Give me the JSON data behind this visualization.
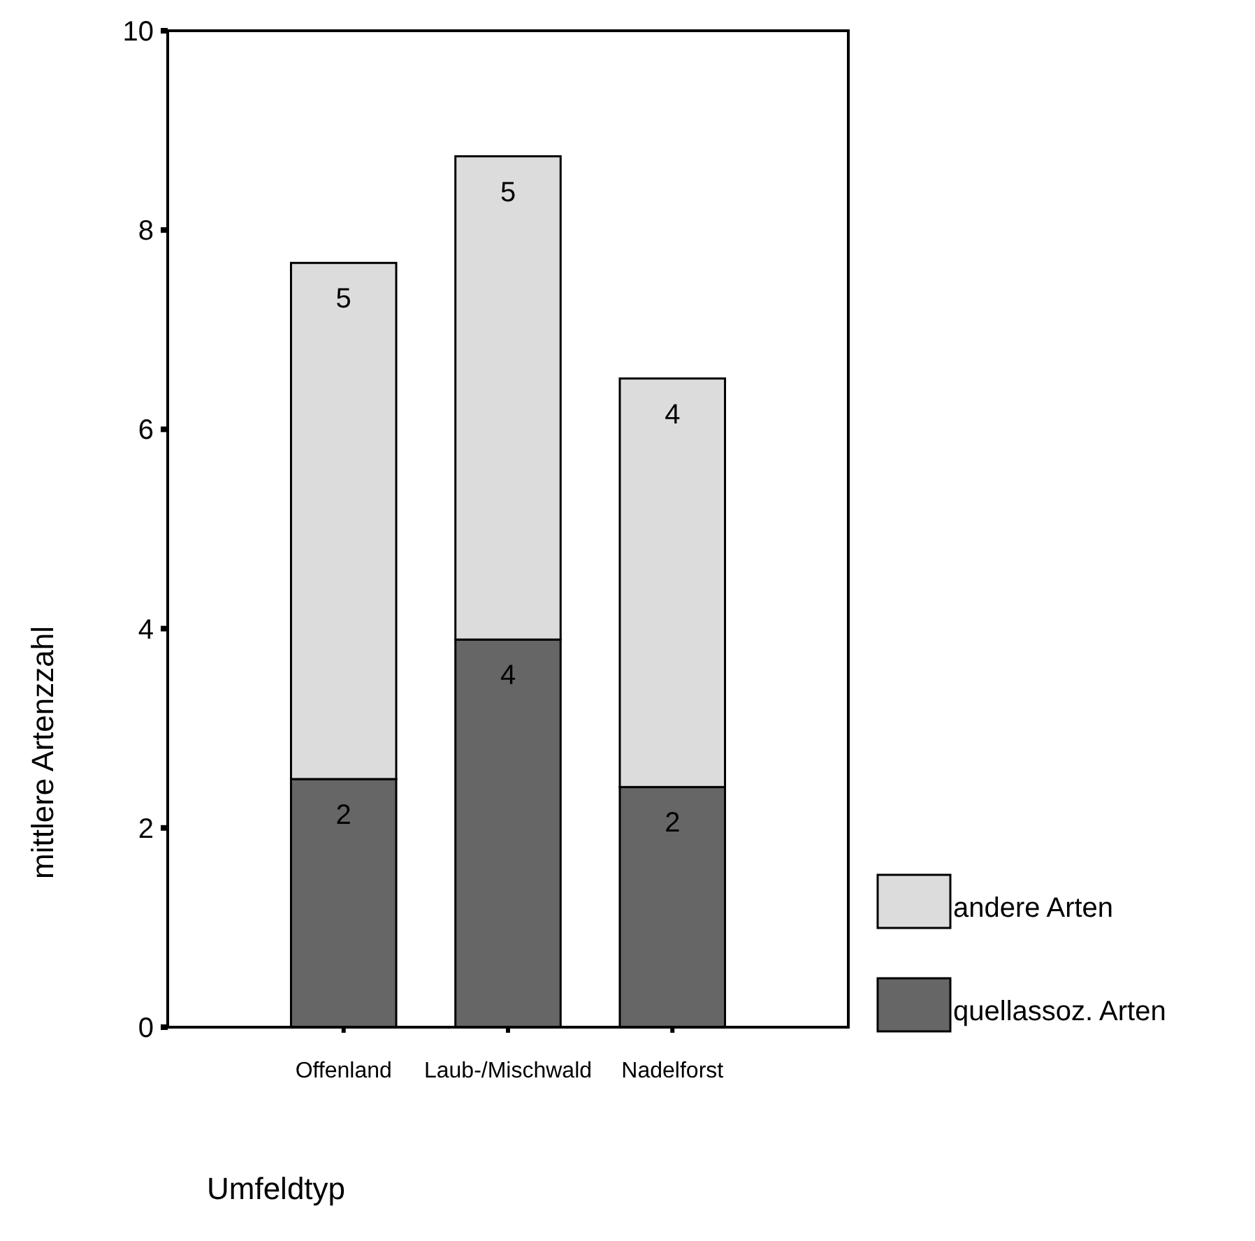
{
  "chart_data": {
    "type": "bar",
    "stacked": true,
    "xlabel": "Umfeldtyp",
    "ylabel": "mittlere Artenzzahl",
    "categories": [
      "Offenland",
      "Laub-/Mischwald",
      "Nadelforst"
    ],
    "series": [
      {
        "name": "quellassoz. Arten",
        "color": "#666666",
        "values": [
          2.49,
          3.89,
          2.41
        ],
        "value_labels": [
          "2",
          "4",
          "2"
        ]
      },
      {
        "name": "andere Arten",
        "color": "#dcdcdc",
        "values": [
          5.18,
          4.85,
          4.1
        ],
        "value_labels": [
          "5",
          "5",
          "4"
        ]
      }
    ],
    "ylim": [
      0,
      10
    ],
    "yticks": [
      0,
      2,
      4,
      6,
      8,
      10
    ],
    "grid": false,
    "legend": "bottom right"
  }
}
